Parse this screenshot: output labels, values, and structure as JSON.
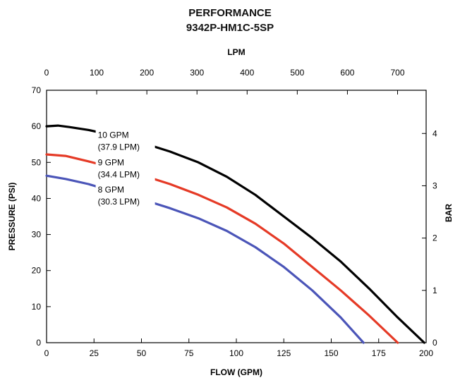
{
  "chart_data": {
    "type": "line",
    "title": "PERFORMANCE",
    "subtitle": "9342P-HM1C-5SP",
    "xlabel": "FLOW (GPM)",
    "ylabel": "PRESSURE (PSI)",
    "x2label": "LPM",
    "y2label": "BAR",
    "xlim": [
      0,
      200
    ],
    "ylim": [
      0,
      70
    ],
    "x2lim": [
      0,
      757
    ],
    "y2lim": [
      0,
      4.826
    ],
    "xticks": [
      0,
      25,
      50,
      75,
      100,
      125,
      150,
      175,
      200
    ],
    "yticks": [
      0,
      10,
      20,
      30,
      40,
      50,
      60,
      70
    ],
    "x2ticks": [
      0,
      100,
      200,
      300,
      400,
      500,
      600,
      700
    ],
    "y2ticks": [
      0,
      1,
      2,
      3,
      4
    ],
    "grid": false,
    "series": [
      {
        "name": "10 GPM (37.9 LPM)",
        "label_lines": [
          "10 GPM",
          "(37.9 LPM)"
        ],
        "color": "#000000",
        "x": [
          0,
          6,
          12,
          22,
          35,
          50,
          65,
          80,
          95,
          110,
          125,
          140,
          155,
          170,
          185,
          199
        ],
        "y": [
          60,
          60.2,
          59.8,
          59,
          57.5,
          55.5,
          53,
          50,
          46,
          41,
          35,
          29,
          22.5,
          15,
          7,
          0
        ]
      },
      {
        "name": "9 GPM (34.4 LPM)",
        "label_lines": [
          "9 GPM",
          "(34.4 LPM)"
        ],
        "color": "#e53a26",
        "x": [
          0,
          10,
          22,
          35,
          50,
          65,
          80,
          95,
          110,
          125,
          140,
          155,
          170,
          185
        ],
        "y": [
          52.2,
          51.8,
          50.3,
          48.5,
          46.5,
          44,
          41,
          37.5,
          33,
          27.5,
          21,
          14.5,
          7.5,
          0
        ]
      },
      {
        "name": "8 GPM (30.3 LPM)",
        "label_lines": [
          "8 GPM",
          "(30.3 LPM)"
        ],
        "color": "#4b55b8",
        "x": [
          0,
          10,
          22,
          35,
          50,
          65,
          80,
          95,
          110,
          125,
          140,
          155,
          167
        ],
        "y": [
          46.3,
          45.4,
          44,
          42,
          39.8,
          37.3,
          34.5,
          31,
          26.5,
          21,
          14.5,
          7,
          0
        ]
      }
    ]
  }
}
